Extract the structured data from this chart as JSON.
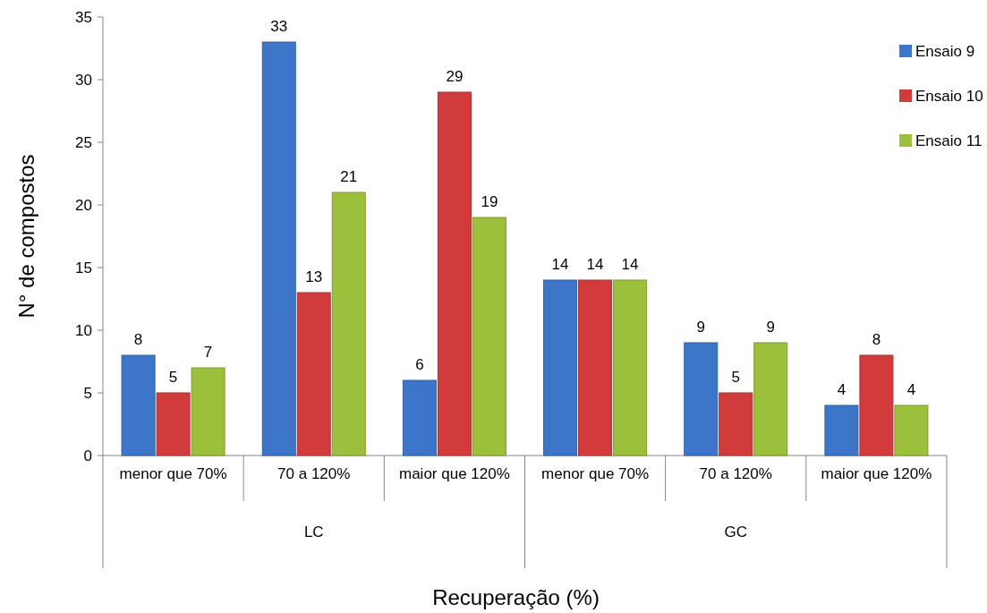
{
  "chart_data": {
    "type": "bar",
    "xlabel": "Recuperação (%)",
    "ylabel": "N° de compostos",
    "categories": [
      "menor que 70%",
      "70 a 120%",
      "maior que 120%",
      "menor que 70%",
      "70 a 120%",
      "maior que 120%"
    ],
    "annotations": [
      "LC",
      "GC"
    ],
    "series": [
      {
        "name": "Ensaio 9",
        "color": "#3d76c9",
        "values": [
          8,
          33,
          6,
          14,
          9,
          4
        ]
      },
      {
        "name": "Ensaio 10",
        "color": "#d13b3b",
        "values": [
          5,
          13,
          29,
          14,
          5,
          8
        ]
      },
      {
        "name": "Ensaio 11",
        "color": "#9cbf3c",
        "values": [
          7,
          21,
          19,
          14,
          9,
          4
        ]
      }
    ],
    "ylim": [
      0,
      35
    ],
    "yticks": [
      0,
      5,
      10,
      15,
      20,
      25,
      30,
      35
    ],
    "data_labels": true,
    "legend": "top right",
    "grid": false
  }
}
